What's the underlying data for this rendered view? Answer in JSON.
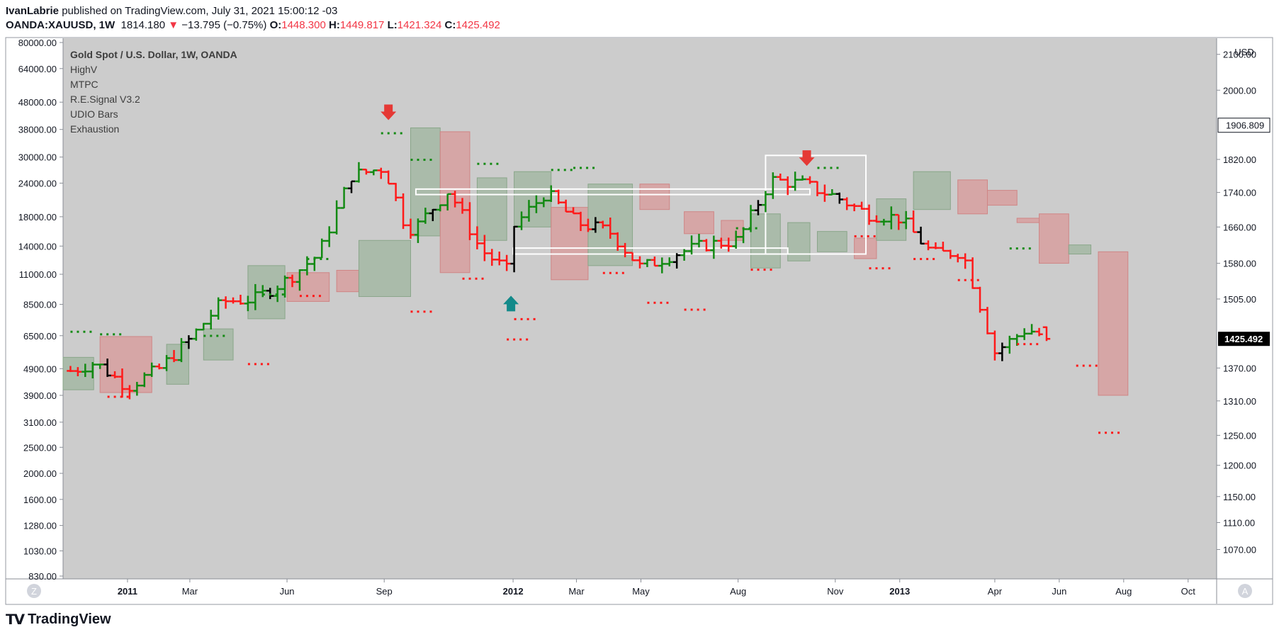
{
  "header": {
    "author": "IvanLabrie",
    "published": "published on TradingView.com, July 31, 2021 15:00:12 -03",
    "symbol": "OANDA:XAUUSD, 1W",
    "price": "1814.180",
    "change_arrow": "▼",
    "change": "−13.795 (−0.75%)",
    "o_label": "O:",
    "o_val": "1448.300",
    "h_label": "H:",
    "h_val": "1449.817",
    "l_label": "L:",
    "l_val": "1421.324",
    "c_label": "C:",
    "c_val": "1425.492"
  },
  "legend": [
    "Gold Spot / U.S. Dollar, 1W, OANDA",
    "HighV",
    "MTPC",
    "R.E.Signal V3.2",
    "UDIO Bars",
    "Exhaustion"
  ],
  "left_axis_ticks": [
    "80000.00",
    "64000.00",
    "48000.00",
    "38000.00",
    "30000.00",
    "24000.00",
    "18000.00",
    "14000.00",
    "11000.00",
    "8500.00",
    "6500.00",
    "4900.00",
    "3900.00",
    "3100.00",
    "2500.00",
    "2000.00",
    "1600.00",
    "1280.00",
    "1030.00",
    "830.00"
  ],
  "right_axis_unit": "USD",
  "right_axis_ticks": [
    "2100.00",
    "2000.00",
    "1820.00",
    "1740.00",
    "1660.00",
    "1580.00",
    "1505.00",
    "1370.00",
    "1310.00",
    "1250.00",
    "1200.00",
    "1150.00",
    "1110.00",
    "1070.00"
  ],
  "price_labels": {
    "upper": "1906.809",
    "last": "1425.492"
  },
  "x_ticks": [
    "2011",
    "Mar",
    "Jun",
    "Sep",
    "2012",
    "Mar",
    "May",
    "Aug",
    "Nov",
    "2013",
    "Apr",
    "Jun",
    "Aug",
    "Oct"
  ],
  "x_bold": [
    "2011",
    "2012",
    "2013"
  ],
  "corner_left": "Z",
  "corner_right": "A",
  "footer": {
    "brand": "TradingView"
  },
  "colors": {
    "up": "#138a13",
    "down": "#ff1a1a",
    "neutral": "#000000",
    "bg": "#cccccc",
    "up_box": "#9fb59f",
    "down_box": "#d99a9a",
    "signal_down": "#e53935",
    "signal_up": "#138a8a"
  },
  "chart_data": {
    "type": "ohlc",
    "title": "Gold Spot / U.S. Dollar, 1W, OANDA",
    "interval": "1W",
    "y_unit": "USD",
    "y_scale": "log",
    "y_range": [
      1040,
      2130
    ],
    "x_range": [
      "2010-11",
      "2013-10"
    ],
    "legend_placement": "top-left",
    "grid": false,
    "series": [
      {
        "name": "Gold Spot / U.S. Dollar",
        "close_path": [
          {
            "t": "2010-11",
            "c": 1360
          },
          {
            "t": "2010-12",
            "c": 1380
          },
          {
            "t": "2011-01",
            "c": 1335
          },
          {
            "t": "2011-02",
            "c": 1370
          },
          {
            "t": "2011-03",
            "c": 1425
          },
          {
            "t": "2011-04",
            "c": 1500
          },
          {
            "t": "2011-05",
            "c": 1505
          },
          {
            "t": "2011-06",
            "c": 1545
          },
          {
            "t": "2011-07",
            "c": 1600
          },
          {
            "t": "2011-08",
            "c": 1780
          },
          {
            "t": "2011-09",
            "c": 1800
          },
          {
            "t": "2011-09-22",
            "c": 1655
          },
          {
            "t": "2011-10",
            "c": 1660
          },
          {
            "t": "2011-11",
            "c": 1745
          },
          {
            "t": "2011-12",
            "c": 1610
          },
          {
            "t": "2011-12-29",
            "c": 1560
          },
          {
            "t": "2012-01",
            "c": 1660
          },
          {
            "t": "2012-02",
            "c": 1740
          },
          {
            "t": "2012-03",
            "c": 1670
          },
          {
            "t": "2012-04",
            "c": 1650
          },
          {
            "t": "2012-05",
            "c": 1570
          },
          {
            "t": "2012-06",
            "c": 1600
          },
          {
            "t": "2012-07",
            "c": 1620
          },
          {
            "t": "2012-08",
            "c": 1630
          },
          {
            "t": "2012-09",
            "c": 1770
          },
          {
            "t": "2012-10",
            "c": 1760
          },
          {
            "t": "2012-11",
            "c": 1730
          },
          {
            "t": "2012-12",
            "c": 1690
          },
          {
            "t": "2013-01",
            "c": 1680
          },
          {
            "t": "2013-02",
            "c": 1600
          },
          {
            "t": "2013-03",
            "c": 1605
          },
          {
            "t": "2013-04",
            "c": 1400
          },
          {
            "t": "2013-05",
            "c": 1445
          },
          {
            "t": "2013-05-24",
            "c": 1425
          }
        ]
      }
    ],
    "last": {
      "o": 1448.3,
      "h": 1449.817,
      "l": 1421.324,
      "c": 1425.492
    }
  }
}
